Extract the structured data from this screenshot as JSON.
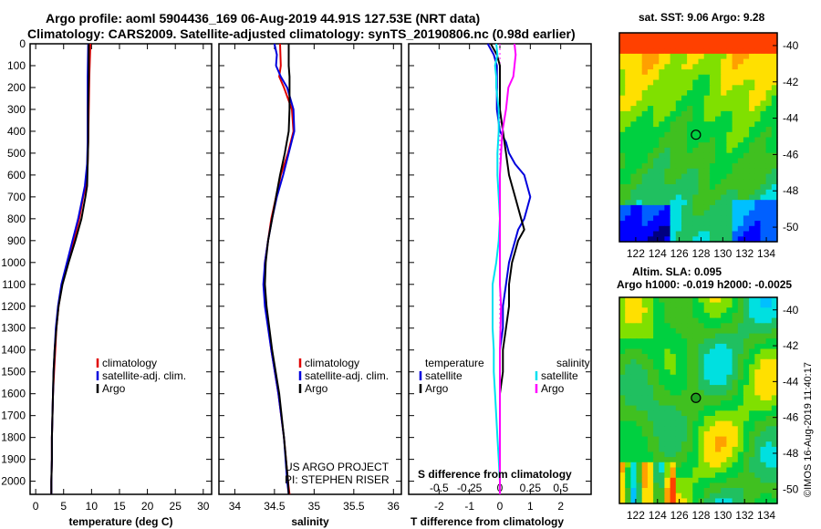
{
  "header": {
    "title_line1": "Argo profile: aoml 5904436_169 06-Aug-2019 44.91S 127.53E (NRT data)",
    "title_line2": "Climatology: CARS2009. Satellite-adjusted climatology: synTS_20190806.nc (0.98d earlier)"
  },
  "colors": {
    "climatology": "#e00000",
    "satellite": "#0000dd",
    "argo": "#000000",
    "sat_salinity": "#00e0f0",
    "salinity_argo": "#ff00ff"
  },
  "chart_data": [
    {
      "type": "line",
      "id": "temperature",
      "xlabel": "temperature (deg C)",
      "ylabel": "",
      "xlim": [
        -1,
        31.5
      ],
      "ylim": [
        2060,
        0
      ],
      "xticks": [
        "0",
        "5",
        "10",
        "15",
        "20",
        "25",
        "30"
      ],
      "yticks": [
        "0",
        "100",
        "200",
        "300",
        "400",
        "500",
        "600",
        "700",
        "800",
        "900",
        "1000",
        "1100",
        "1200",
        "1300",
        "1400",
        "1500",
        "1600",
        "1700",
        "1800",
        "1900",
        "2000"
      ],
      "legend": [
        "climatology",
        "satellite-adj. clim.",
        "Argo"
      ],
      "series": [
        {
          "name": "climatology",
          "depth": [
            0,
            150,
            300,
            450,
            550,
            650,
            700,
            800,
            900,
            1000,
            1100,
            1200,
            1300,
            1400,
            1500,
            1600,
            1700,
            1800,
            1900,
            2000,
            2060
          ],
          "values": [
            9.8,
            9.6,
            9.5,
            9.4,
            9.3,
            9.0,
            8.5,
            7.8,
            6.8,
            5.7,
            4.7,
            4.1,
            3.7,
            3.5,
            3.3,
            3.1,
            3.0,
            2.9,
            2.9,
            2.8,
            2.8
          ]
        },
        {
          "name": "satellite-adj. clim.",
          "depth": [
            0,
            150,
            300,
            450,
            550,
            650,
            700,
            800,
            900,
            1000,
            1100,
            1200,
            1300,
            1400,
            1500,
            1600,
            1700,
            1800,
            1900,
            2000,
            2060
          ],
          "values": [
            9.4,
            9.3,
            9.3,
            9.3,
            9.2,
            8.8,
            8.4,
            7.6,
            6.6,
            5.6,
            4.6,
            4.0,
            3.6,
            3.4,
            3.2,
            3.1,
            3.0,
            2.9,
            2.9,
            2.8,
            2.8
          ]
        },
        {
          "name": "Argo",
          "depth": [
            0,
            150,
            300,
            450,
            550,
            650,
            700,
            800,
            900,
            1000,
            1100,
            1200,
            1300,
            1400,
            1500,
            1600,
            1700,
            1800,
            1900,
            2000,
            2060
          ],
          "values": [
            9.5,
            9.5,
            9.4,
            9.4,
            9.3,
            9.2,
            8.9,
            8.2,
            7.1,
            5.9,
            4.8,
            4.1,
            3.7,
            3.4,
            3.2,
            3.1,
            3.0,
            2.9,
            2.9,
            2.8,
            2.8
          ]
        }
      ]
    },
    {
      "type": "line",
      "id": "salinity",
      "xlabel": "salinity",
      "ylabel": "",
      "xlim": [
        33.8,
        36.1
      ],
      "ylim": [
        2060,
        0
      ],
      "xticks": [
        "34",
        "34.5",
        "35",
        "35.5",
        "36"
      ],
      "legend": [
        "climatology",
        "satellite-adj. clim.",
        "Argo"
      ],
      "annotation": [
        "US ARGO PROJECT",
        "PI: STEPHEN RISER"
      ],
      "series": [
        {
          "name": "climatology",
          "depth": [
            0,
            100,
            150,
            200,
            300,
            400,
            500,
            600,
            700,
            800,
            900,
            1000,
            1100,
            1200,
            1400,
            1600,
            1800,
            2000,
            2060
          ],
          "values": [
            34.57,
            34.58,
            34.56,
            34.62,
            34.72,
            34.74,
            34.67,
            34.58,
            34.52,
            34.46,
            34.42,
            34.38,
            34.37,
            34.39,
            34.46,
            34.55,
            34.62,
            34.67,
            34.69
          ]
        },
        {
          "name": "satellite-adj. clim.",
          "depth": [
            0,
            50,
            100,
            150,
            200,
            300,
            400,
            500,
            600,
            700,
            800,
            900,
            1000,
            1100,
            1200,
            1400,
            1600,
            1800,
            2000,
            2060
          ],
          "values": [
            34.5,
            34.53,
            34.52,
            34.58,
            34.66,
            34.74,
            34.75,
            34.68,
            34.61,
            34.53,
            34.47,
            34.42,
            34.38,
            34.36,
            34.38,
            34.46,
            34.55,
            34.62,
            34.66,
            34.68
          ]
        },
        {
          "name": "Argo",
          "depth": [
            0,
            100,
            150,
            200,
            300,
            400,
            500,
            600,
            700,
            800,
            900,
            1000,
            1100,
            1200,
            1400,
            1600,
            1800,
            2000,
            2060
          ],
          "values": [
            34.68,
            34.68,
            34.69,
            34.69,
            34.69,
            34.68,
            34.63,
            34.57,
            34.52,
            34.47,
            34.42,
            34.39,
            34.38,
            34.4,
            34.47,
            34.56,
            34.62,
            34.67,
            34.68
          ]
        }
      ]
    },
    {
      "type": "line",
      "id": "differences",
      "xlabel": "T difference from climatology",
      "xlabel2": "S difference from climatology",
      "xlim": [
        -3,
        3
      ],
      "ylim": [
        2060,
        0
      ],
      "xticks": [
        "-2",
        "-1",
        "0",
        "1",
        "2"
      ],
      "xticks_s": [
        "-0.5",
        "-0.25",
        "0",
        "0.25",
        "0.5"
      ],
      "legend_t": [
        "temperature",
        "satellite",
        "Argo"
      ],
      "legend_s": [
        "salinity",
        "satellite",
        "Argo"
      ],
      "series": [
        {
          "name": "T satellite",
          "depth": [
            0,
            50,
            100,
            150,
            200,
            300,
            400,
            450,
            500,
            550,
            600,
            650,
            700,
            750,
            800,
            850,
            900,
            950,
            1000,
            1100,
            1200,
            1300,
            1400,
            1500,
            1600,
            1700,
            1800,
            1900,
            2000,
            2060
          ],
          "values": [
            -0.4,
            -0.2,
            -0.1,
            -0.1,
            -0.1,
            -0.1,
            0.0,
            0.2,
            0.3,
            0.5,
            0.8,
            0.9,
            1.0,
            0.9,
            0.8,
            0.6,
            0.5,
            0.4,
            0.3,
            0.2,
            0.1,
            0.1,
            0.0,
            0.0,
            0.0,
            0.0,
            0.0,
            0.0,
            0.0,
            0.0
          ]
        },
        {
          "name": "T Argo",
          "depth": [
            0,
            50,
            100,
            150,
            200,
            300,
            400,
            500,
            600,
            700,
            750,
            800,
            850,
            900,
            950,
            1000,
            1100,
            1200,
            1300,
            1400,
            1500,
            1600,
            1700,
            1800,
            1900,
            2000,
            2060
          ],
          "values": [
            -0.3,
            -0.1,
            0.0,
            0.0,
            0.0,
            0.0,
            0.1,
            0.2,
            0.3,
            0.5,
            0.6,
            0.7,
            0.8,
            0.6,
            0.5,
            0.4,
            0.3,
            0.3,
            0.2,
            0.1,
            0.1,
            0.0,
            0.0,
            0.0,
            0.0,
            0.0,
            0.0
          ]
        },
        {
          "name": "S satellite",
          "depth": [
            0,
            50,
            100,
            150,
            200,
            300,
            400,
            500,
            600,
            700,
            800,
            900,
            1000,
            1100,
            1200,
            1300,
            1400,
            1500,
            1600,
            1700,
            1800,
            1900,
            2000,
            2060
          ],
          "values": [
            -0.03,
            -0.02,
            -0.04,
            -0.03,
            -0.03,
            -0.01,
            -0.01,
            -0.02,
            -0.02,
            -0.01,
            0.0,
            -0.01,
            -0.03,
            -0.06,
            -0.06,
            -0.06,
            -0.05,
            -0.05,
            -0.04,
            -0.03,
            -0.02,
            -0.01,
            0.0,
            0.0
          ]
        },
        {
          "name": "S Argo",
          "depth": [
            0,
            50,
            100,
            150,
            200,
            300,
            400,
            500,
            600,
            700,
            800,
            900,
            1000,
            1100,
            1200,
            1400,
            1600,
            1800,
            2000,
            2060
          ],
          "values": [
            0.12,
            0.13,
            0.12,
            0.11,
            0.07,
            0.05,
            0.02,
            0.01,
            0.0,
            0.0,
            0.0,
            0.0,
            0.0,
            0.0,
            0.01,
            0.0,
            0.0,
            0.0,
            0.0,
            0.0
          ]
        }
      ]
    },
    {
      "type": "heatmap",
      "id": "sst-map",
      "title": "sat. SST: 9.06 Argo: 9.28",
      "xticks": [
        "122",
        "124",
        "126",
        "128",
        "130",
        "132",
        "134"
      ],
      "yticks": [
        "-40",
        "-42",
        "-44",
        "-46",
        "-48",
        "-50"
      ],
      "xlim": [
        120.5,
        135
      ],
      "ylim": [
        -50.8,
        -39.3
      ],
      "marker": {
        "lon": 127.53,
        "lat": -44.91
      }
    },
    {
      "type": "heatmap",
      "id": "sla-map",
      "title": [
        "Altim. SLA: 0.095",
        "Argo h1000: -0.019 h2000: -0.0025"
      ],
      "xticks": [
        "122",
        "124",
        "126",
        "128",
        "130",
        "132",
        "134"
      ],
      "yticks": [
        "-40",
        "-42",
        "-44",
        "-46",
        "-48",
        "-50"
      ],
      "xlim": [
        120.5,
        135
      ],
      "ylim": [
        -50.8,
        -39.3
      ],
      "marker": {
        "lon": 127.53,
        "lat": -44.91
      }
    }
  ],
  "footer": {
    "credit": "©IMOS 16-Aug-2019 11:40:17"
  }
}
